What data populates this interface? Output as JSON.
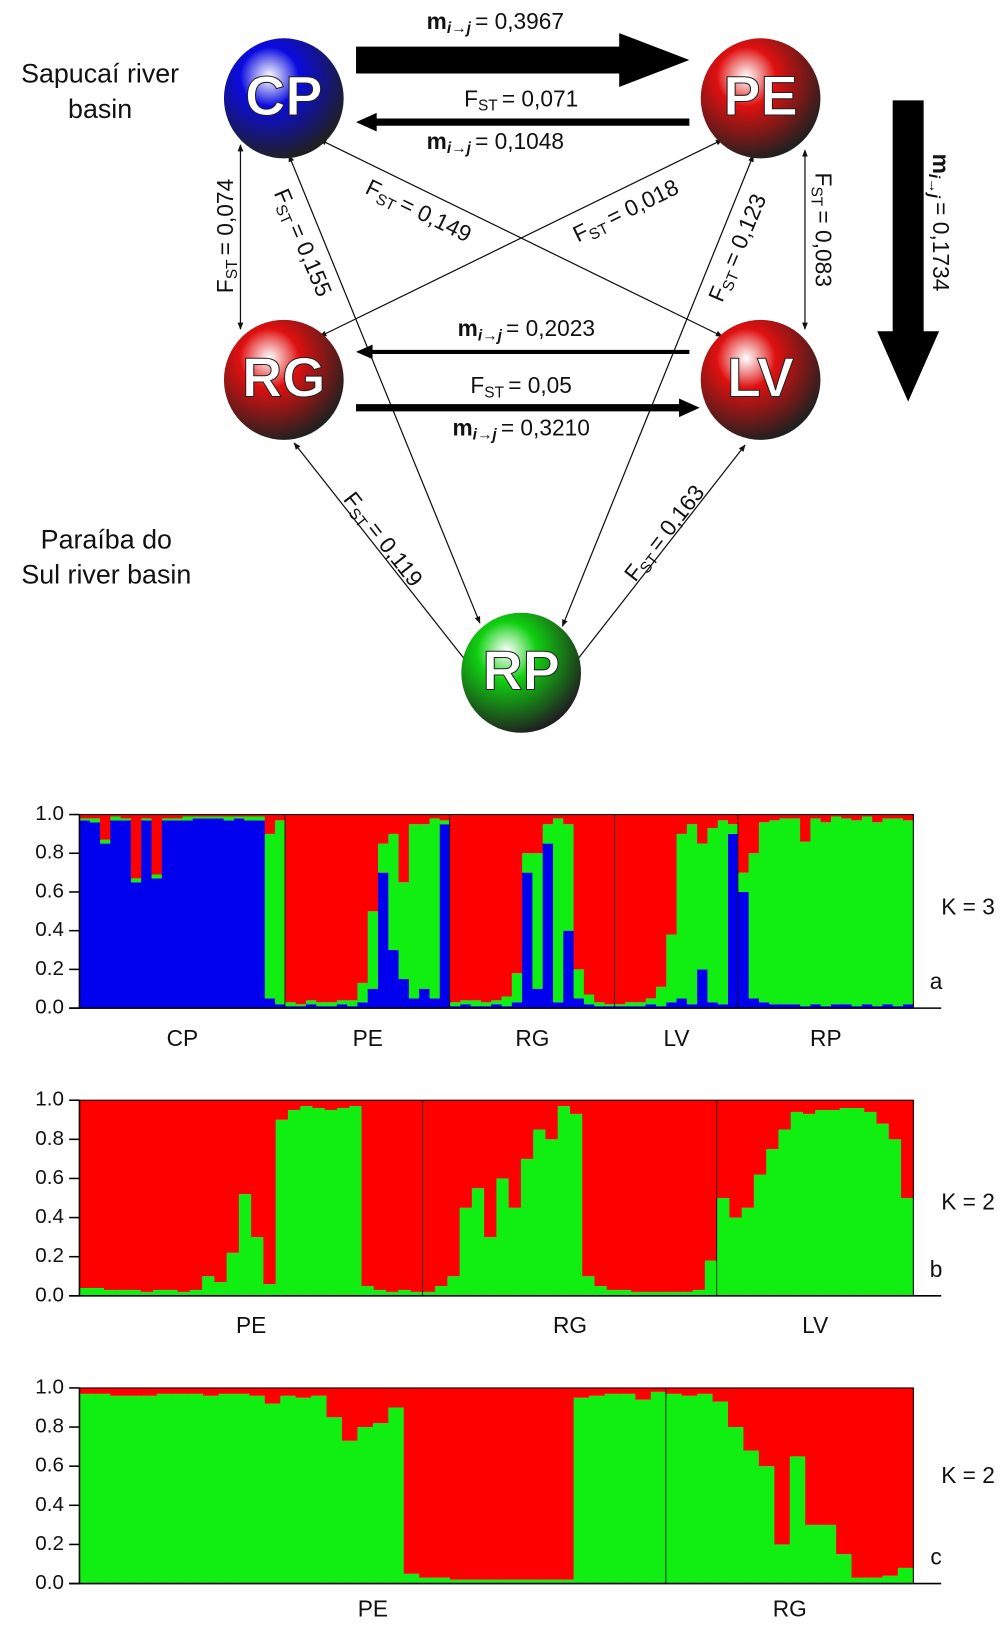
{
  "diagram": {
    "regions": [
      [
        "Sapucaí river",
        "basin"
      ],
      [
        "Paraíba do",
        "Sul river basin"
      ]
    ],
    "nodes": [
      {
        "label": "CP",
        "color": "#0a0ae0"
      },
      {
        "label": "PE",
        "color": "#e01010"
      },
      {
        "label": "RG",
        "color": "#e01010"
      },
      {
        "label": "LV",
        "color": "#e01010"
      },
      {
        "label": "RP",
        "color": "#10d010"
      }
    ],
    "fst_symbol": "F",
    "fst_sub": "ST",
    "m_symbol": "m",
    "m_sub": "i→j",
    "fst_labels": [
      "= 0,071",
      "= 0,074",
      "= 0,155",
      "= 0,149",
      "= 0,018",
      "= 0,123",
      "= 0,083",
      "= 0,05",
      "= 0,119",
      "= 0,163"
    ],
    "migration_labels": [
      "= 0,3967",
      "= 0,1048",
      "= 0,1734",
      "= 0,2023",
      "= 0,3210"
    ]
  },
  "chart_data": [
    {
      "type": "bar",
      "stacked": true,
      "k_label": "K = 3",
      "panel": "a",
      "categories": [
        "CP",
        "PE",
        "RG",
        "LV",
        "RP"
      ],
      "ylim": [
        0,
        1
      ],
      "yticks": [
        {
          "value": 0,
          "label": "0.0"
        },
        0.2,
        0.4,
        0.6,
        0.8,
        {
          "value": 1,
          "label": "1.0"
        }
      ],
      "series": [
        {
          "color": "#0000ee",
          "values": [
            [
              0.97,
              0.96,
              0.85,
              0.97,
              0.97,
              0.65,
              0.97,
              0.67,
              0.97,
              0.97,
              0.97,
              0.98,
              0.98,
              0.98,
              0.97,
              0.98,
              0.97,
              0.97,
              0.05,
              0.02
            ],
            [
              0.01,
              0.01,
              0.02,
              0.01,
              0.01,
              0.02,
              0.01,
              0.03,
              0.1,
              0.7,
              0.3,
              0.15,
              0.05,
              0.1,
              0.05,
              0.95
            ],
            [
              0.01,
              0.02,
              0.01,
              0.01,
              0.02,
              0.01,
              0.03,
              0.7,
              0.1,
              0.85,
              0.03,
              0.4,
              0.05,
              0.02,
              0.01,
              0.01
            ],
            [
              0.01,
              0.01,
              0.01,
              0.02,
              0.01,
              0.03,
              0.05,
              0.02,
              0.2,
              0.03,
              0.02,
              0.9
            ],
            [
              0.6,
              0.05,
              0.03,
              0.02,
              0.02,
              0.02,
              0.01,
              0.02,
              0.01,
              0.02,
              0.02,
              0.01,
              0.02,
              0.01,
              0.02,
              0.01,
              0.02
            ]
          ]
        },
        {
          "color": "#11ee11",
          "values": [
            [
              0.01,
              0.02,
              0.02,
              0.02,
              0.01,
              0.02,
              0.01,
              0.02,
              0.01,
              0.01,
              0.02,
              0.01,
              0.01,
              0.01,
              0.02,
              0.01,
              0.02,
              0.02,
              0.85,
              0.95
            ],
            [
              0.02,
              0.01,
              0.02,
              0.02,
              0.02,
              0.02,
              0.03,
              0.1,
              0.4,
              0.15,
              0.6,
              0.5,
              0.9,
              0.85,
              0.93,
              0.02
            ],
            [
              0.02,
              0.02,
              0.03,
              0.02,
              0.02,
              0.05,
              0.15,
              0.1,
              0.7,
              0.1,
              0.95,
              0.55,
              0.15,
              0.05,
              0.02,
              0.01
            ],
            [
              0.01,
              0.02,
              0.02,
              0.03,
              0.1,
              0.35,
              0.85,
              0.93,
              0.65,
              0.9,
              0.95,
              0.05
            ],
            [
              0.1,
              0.75,
              0.93,
              0.95,
              0.96,
              0.96,
              0.85,
              0.96,
              0.95,
              0.97,
              0.96,
              0.96,
              0.97,
              0.95,
              0.96,
              0.97,
              0.95
            ]
          ]
        },
        {
          "color": "#ff0000",
          "values": [
            [
              0.02,
              0.02,
              0.13,
              0.01,
              0.02,
              0.33,
              0.02,
              0.31,
              0.02,
              0.02,
              0.01,
              0.01,
              0.01,
              0.01,
              0.01,
              0.01,
              0.01,
              0.01,
              0.1,
              0.03
            ],
            [
              0.97,
              0.98,
              0.96,
              0.97,
              0.97,
              0.96,
              0.96,
              0.87,
              0.5,
              0.15,
              0.1,
              0.35,
              0.05,
              0.05,
              0.02,
              0.03
            ],
            [
              0.97,
              0.96,
              0.96,
              0.97,
              0.96,
              0.94,
              0.82,
              0.2,
              0.2,
              0.05,
              0.02,
              0.05,
              0.8,
              0.93,
              0.97,
              0.98
            ],
            [
              0.98,
              0.97,
              0.97,
              0.95,
              0.89,
              0.62,
              0.1,
              0.05,
              0.15,
              0.07,
              0.03,
              0.05
            ],
            [
              0.3,
              0.2,
              0.04,
              0.03,
              0.02,
              0.02,
              0.14,
              0.02,
              0.04,
              0.01,
              0.02,
              0.03,
              0.01,
              0.04,
              0.02,
              0.02,
              0.03
            ]
          ]
        }
      ]
    },
    {
      "type": "bar",
      "stacked": true,
      "k_label": "K = 2",
      "panel": "b",
      "categories": [
        "PE",
        "RG",
        "LV"
      ],
      "ylim": [
        0,
        1
      ],
      "yticks": [
        {
          "value": 0,
          "label": "0.0"
        },
        0.2,
        0.4,
        0.6,
        0.8,
        {
          "value": 1,
          "label": "1.0"
        }
      ],
      "series": [
        {
          "color": "#11ee11",
          "values": [
            [
              0.04,
              0.04,
              0.03,
              0.03,
              0.03,
              0.02,
              0.03,
              0.03,
              0.02,
              0.03,
              0.1,
              0.07,
              0.22,
              0.52,
              0.3,
              0.06,
              0.9,
              0.95,
              0.97,
              0.96,
              0.95,
              0.96,
              0.97,
              0.05,
              0.03,
              0.02,
              0.03,
              0.02
            ],
            [
              0.02,
              0.05,
              0.1,
              0.45,
              0.55,
              0.3,
              0.6,
              0.45,
              0.7,
              0.85,
              0.8,
              0.97,
              0.93,
              0.1,
              0.05,
              0.03,
              0.03,
              0.02,
              0.02,
              0.02,
              0.02,
              0.02,
              0.03,
              0.18
            ],
            [
              0.5,
              0.4,
              0.45,
              0.62,
              0.75,
              0.85,
              0.94,
              0.93,
              0.95,
              0.95,
              0.96,
              0.96,
              0.94,
              0.88,
              0.8,
              0.5
            ]
          ]
        },
        {
          "color": "#ff0000",
          "values": [
            [
              0.96,
              0.96,
              0.97,
              0.97,
              0.97,
              0.98,
              0.97,
              0.97,
              0.98,
              0.97,
              0.9,
              0.93,
              0.78,
              0.48,
              0.7,
              0.94,
              0.1,
              0.05,
              0.03,
              0.04,
              0.05,
              0.04,
              0.03,
              0.95,
              0.97,
              0.98,
              0.97,
              0.98
            ],
            [
              0.98,
              0.95,
              0.9,
              0.55,
              0.45,
              0.7,
              0.4,
              0.55,
              0.3,
              0.15,
              0.2,
              0.03,
              0.07,
              0.9,
              0.95,
              0.97,
              0.97,
              0.98,
              0.98,
              0.98,
              0.98,
              0.98,
              0.97,
              0.82
            ],
            [
              0.5,
              0.6,
              0.55,
              0.38,
              0.25,
              0.15,
              0.06,
              0.07,
              0.05,
              0.05,
              0.04,
              0.04,
              0.06,
              0.12,
              0.2,
              0.5
            ]
          ]
        }
      ]
    },
    {
      "type": "bar",
      "stacked": true,
      "k_label": "K = 2",
      "panel": "c",
      "categories": [
        "PE",
        "RG"
      ],
      "ylim": [
        0,
        1
      ],
      "yticks": [
        {
          "value": 0,
          "label": "0.0"
        },
        0.2,
        0.4,
        0.6,
        0.8,
        {
          "value": 1,
          "label": "1.0"
        }
      ],
      "series": [
        {
          "color": "#11ee11",
          "values": [
            [
              0.97,
              0.97,
              0.96,
              0.96,
              0.96,
              0.97,
              0.97,
              0.97,
              0.96,
              0.97,
              0.97,
              0.96,
              0.92,
              0.96,
              0.95,
              0.96,
              0.85,
              0.73,
              0.8,
              0.82,
              0.9,
              0.05,
              0.03,
              0.03,
              0.02,
              0.02,
              0.02,
              0.02,
              0.02,
              0.02,
              0.02,
              0.02,
              0.95,
              0.96,
              0.97,
              0.97,
              0.94,
              0.98
            ],
            [
              0.97,
              0.96,
              0.97,
              0.93,
              0.8,
              0.68,
              0.6,
              0.2,
              0.65,
              0.3,
              0.3,
              0.15,
              0.03,
              0.03,
              0.04,
              0.08
            ]
          ]
        },
        {
          "color": "#ff0000",
          "values": [
            [
              0.03,
              0.03,
              0.04,
              0.04,
              0.04,
              0.03,
              0.03,
              0.03,
              0.04,
              0.03,
              0.03,
              0.04,
              0.08,
              0.04,
              0.05,
              0.04,
              0.15,
              0.27,
              0.2,
              0.18,
              0.1,
              0.95,
              0.97,
              0.97,
              0.98,
              0.98,
              0.98,
              0.98,
              0.98,
              0.98,
              0.98,
              0.98,
              0.05,
              0.04,
              0.03,
              0.03,
              0.06,
              0.02
            ],
            [
              0.03,
              0.04,
              0.03,
              0.07,
              0.2,
              0.32,
              0.4,
              0.8,
              0.35,
              0.7,
              0.7,
              0.85,
              0.97,
              0.97,
              0.96,
              0.92
            ]
          ]
        }
      ]
    }
  ]
}
